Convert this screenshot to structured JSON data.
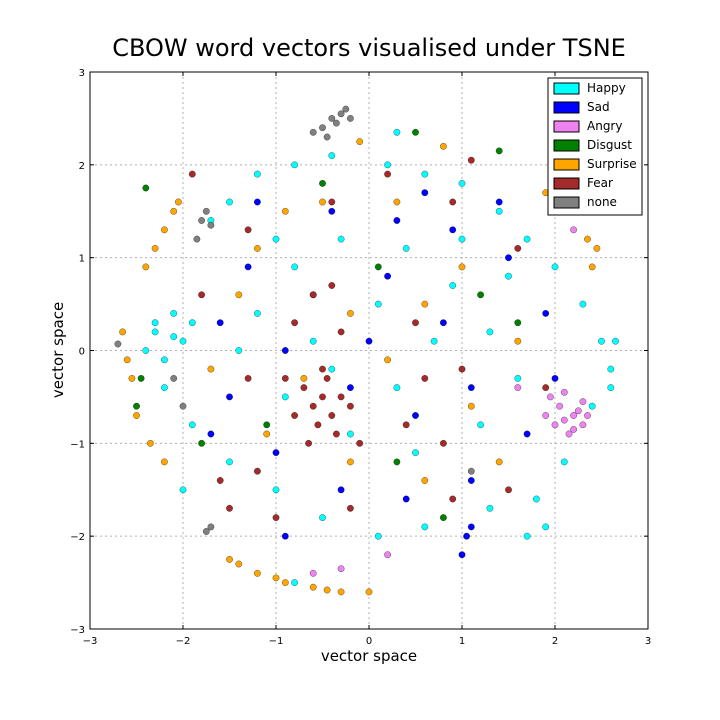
{
  "chart_data": {
    "type": "scatter",
    "title": "CBOW word vectors visualised under TSNE",
    "xlabel": "vector space",
    "ylabel": "vector space",
    "xlim": [
      -3,
      3
    ],
    "ylim": [
      -3,
      3
    ],
    "xticks": [
      "−3",
      "−2",
      "−1",
      "0",
      "1",
      "2",
      "3"
    ],
    "yticks": [
      "−3",
      "−2",
      "−1",
      "0",
      "1",
      "2",
      "3"
    ],
    "grid": true,
    "legend_position": "top-right",
    "series": [
      {
        "name": "Happy",
        "color": "#00ffff",
        "points": [
          [
            -2.3,
            0.2
          ],
          [
            -2.1,
            0.4
          ],
          [
            -2.2,
            -0.1
          ],
          [
            -1.9,
            0.3
          ],
          [
            -2.0,
            0.1
          ],
          [
            -1.7,
            1.4
          ],
          [
            -1.5,
            1.6
          ],
          [
            -1.2,
            1.9
          ],
          [
            -0.8,
            2.0
          ],
          [
            -0.4,
            2.1
          ],
          [
            0.2,
            2.0
          ],
          [
            0.6,
            1.9
          ],
          [
            1.0,
            1.8
          ],
          [
            1.4,
            1.5
          ],
          [
            1.7,
            1.2
          ],
          [
            2.0,
            0.9
          ],
          [
            2.3,
            0.5
          ],
          [
            2.5,
            0.1
          ],
          [
            2.6,
            -0.2
          ],
          [
            2.4,
            -0.6
          ],
          [
            2.1,
            -1.2
          ],
          [
            1.8,
            -1.6
          ],
          [
            1.3,
            -1.7
          ],
          [
            0.6,
            -1.9
          ],
          [
            0.1,
            -2.0
          ],
          [
            -0.5,
            -1.8
          ],
          [
            -1.0,
            -1.5
          ],
          [
            -1.5,
            -1.2
          ],
          [
            -1.9,
            -0.8
          ],
          [
            -2.2,
            -0.4
          ],
          [
            -1.2,
            0.4
          ],
          [
            -0.8,
            0.9
          ],
          [
            -0.3,
            1.2
          ],
          [
            0.4,
            1.1
          ],
          [
            0.9,
            0.7
          ],
          [
            1.3,
            0.2
          ],
          [
            1.6,
            -0.3
          ],
          [
            1.2,
            -0.8
          ],
          [
            0.5,
            -1.1
          ],
          [
            -0.2,
            -0.9
          ],
          [
            -0.9,
            -0.5
          ],
          [
            -1.4,
            0.0
          ],
          [
            -0.6,
            0.1
          ],
          [
            0.1,
            0.5
          ],
          [
            0.7,
            0.1
          ],
          [
            0.3,
            -0.4
          ],
          [
            -0.4,
            -0.2
          ],
          [
            1.0,
            1.2
          ],
          [
            1.5,
            0.8
          ],
          [
            -1.0,
            1.2
          ],
          [
            -2.4,
            0.0
          ],
          [
            -2.3,
            0.3
          ],
          [
            -2.1,
            0.15
          ],
          [
            2.65,
            0.1
          ],
          [
            2.6,
            -0.4
          ],
          [
            1.9,
            -1.9
          ],
          [
            -0.8,
            -2.5
          ],
          [
            -2.0,
            -1.5
          ],
          [
            0.3,
            2.35
          ],
          [
            1.7,
            -2.0
          ]
        ]
      },
      {
        "name": "Sad",
        "color": "#0000ff",
        "points": [
          [
            -1.2,
            1.6
          ],
          [
            -0.4,
            1.5
          ],
          [
            0.3,
            1.4
          ],
          [
            0.9,
            1.3
          ],
          [
            1.5,
            1.0
          ],
          [
            1.9,
            0.4
          ],
          [
            2.0,
            -0.3
          ],
          [
            1.7,
            -0.9
          ],
          [
            1.1,
            -1.4
          ],
          [
            0.4,
            -1.6
          ],
          [
            -0.3,
            -1.5
          ],
          [
            -1.0,
            -1.1
          ],
          [
            -1.5,
            -0.5
          ],
          [
            -1.6,
            0.3
          ],
          [
            -1.3,
            0.9
          ],
          [
            -0.6,
            0.6
          ],
          [
            0.2,
            0.8
          ],
          [
            0.8,
            0.3
          ],
          [
            1.1,
            -0.4
          ],
          [
            0.5,
            -0.7
          ],
          [
            -0.2,
            -0.4
          ],
          [
            -0.9,
            0.0
          ],
          [
            0.0,
            0.1
          ],
          [
            1.05,
            -2.0
          ],
          [
            1.0,
            -2.2
          ],
          [
            1.1,
            -1.9
          ],
          [
            -0.9,
            -2.0
          ],
          [
            0.6,
            1.7
          ],
          [
            -1.7,
            -0.9
          ],
          [
            1.4,
            1.6
          ]
        ]
      },
      {
        "name": "Angry",
        "color": "#ee82ee",
        "points": [
          [
            2.2,
            -0.7
          ],
          [
            2.3,
            -0.8
          ],
          [
            2.1,
            -0.75
          ],
          [
            2.25,
            -0.65
          ],
          [
            2.0,
            -0.8
          ],
          [
            2.15,
            -0.9
          ],
          [
            2.3,
            -0.55
          ],
          [
            1.9,
            -0.7
          ],
          [
            2.05,
            -0.6
          ],
          [
            2.2,
            -0.85
          ],
          [
            1.95,
            -0.5
          ],
          [
            2.1,
            -0.45
          ],
          [
            2.2,
            1.3
          ],
          [
            -0.3,
            -2.35
          ],
          [
            0.2,
            -2.2
          ],
          [
            -0.6,
            -2.4
          ],
          [
            1.6,
            -0.4
          ],
          [
            2.35,
            -0.7
          ]
        ]
      },
      {
        "name": "Disgust",
        "color": "#008000",
        "points": [
          [
            -2.4,
            1.75
          ],
          [
            -2.5,
            -0.6
          ],
          [
            -2.45,
            -0.3
          ],
          [
            -1.8,
            -1.0
          ],
          [
            0.3,
            -1.2
          ],
          [
            1.2,
            0.6
          ],
          [
            0.5,
            2.35
          ],
          [
            1.4,
            2.15
          ],
          [
            -0.5,
            1.8
          ],
          [
            0.8,
            -1.8
          ],
          [
            1.6,
            0.3
          ],
          [
            -1.1,
            -0.8
          ],
          [
            0.1,
            0.9
          ]
        ]
      },
      {
        "name": "Surprise",
        "color": "#ffa500",
        "points": [
          [
            -2.55,
            -0.3
          ],
          [
            -2.6,
            -0.1
          ],
          [
            -2.65,
            0.2
          ],
          [
            -2.5,
            -0.7
          ],
          [
            -2.35,
            -1.0
          ],
          [
            -2.2,
            -1.2
          ],
          [
            -2.4,
            0.9
          ],
          [
            -2.3,
            1.1
          ],
          [
            -2.2,
            1.3
          ],
          [
            -2.1,
            1.5
          ],
          [
            -2.05,
            1.6
          ],
          [
            -1.5,
            -2.25
          ],
          [
            -1.2,
            -2.4
          ],
          [
            -0.9,
            -2.5
          ],
          [
            -0.6,
            -2.55
          ],
          [
            -0.3,
            -2.6
          ],
          [
            0.0,
            -2.6
          ],
          [
            -1.4,
            -2.3
          ],
          [
            -1.0,
            -2.45
          ],
          [
            -0.45,
            -2.58
          ],
          [
            2.4,
            0.9
          ],
          [
            2.45,
            1.1
          ],
          [
            2.35,
            1.2
          ],
          [
            -1.2,
            1.1
          ],
          [
            -0.5,
            1.6
          ],
          [
            0.3,
            1.6
          ],
          [
            1.0,
            0.9
          ],
          [
            1.6,
            0.1
          ],
          [
            1.4,
            -1.2
          ],
          [
            0.6,
            -1.4
          ],
          [
            -0.2,
            -1.2
          ],
          [
            -1.1,
            -0.9
          ],
          [
            -1.7,
            -0.2
          ],
          [
            -1.4,
            0.6
          ],
          [
            -0.7,
            -0.3
          ],
          [
            0.2,
            -0.1
          ],
          [
            0.6,
            0.5
          ],
          [
            -0.2,
            0.4
          ],
          [
            1.1,
            -0.6
          ],
          [
            -0.9,
            1.5
          ],
          [
            1.9,
            1.7
          ],
          [
            0.8,
            2.2
          ],
          [
            -0.1,
            2.25
          ]
        ]
      },
      {
        "name": "Fear",
        "color": "#a52a2a",
        "points": [
          [
            -0.6,
            -0.6
          ],
          [
            -0.5,
            -0.5
          ],
          [
            -0.4,
            -0.7
          ],
          [
            -0.7,
            -0.4
          ],
          [
            -0.55,
            -0.8
          ],
          [
            -0.3,
            -0.5
          ],
          [
            -0.45,
            -0.3
          ],
          [
            -0.8,
            -0.7
          ],
          [
            -0.35,
            -0.9
          ],
          [
            -0.65,
            -1.0
          ],
          [
            -0.2,
            -0.6
          ],
          [
            -0.9,
            -0.3
          ],
          [
            -0.5,
            -0.2
          ],
          [
            -0.6,
            0.6
          ],
          [
            -0.4,
            0.7
          ],
          [
            -0.8,
            0.3
          ],
          [
            -0.3,
            0.2
          ],
          [
            0.4,
            -0.8
          ],
          [
            0.8,
            -1.0
          ],
          [
            1.0,
            -0.2
          ],
          [
            0.5,
            0.3
          ],
          [
            -1.2,
            -1.3
          ],
          [
            -1.6,
            -1.4
          ],
          [
            -1.9,
            1.9
          ],
          [
            -1.3,
            1.3
          ],
          [
            0.9,
            1.6
          ],
          [
            1.6,
            1.1
          ],
          [
            1.9,
            -0.4
          ],
          [
            1.5,
            -1.5
          ],
          [
            0.9,
            -1.6
          ],
          [
            -0.2,
            -1.7
          ],
          [
            -1.0,
            -1.8
          ],
          [
            -1.5,
            -1.7
          ],
          [
            -1.8,
            0.6
          ],
          [
            -1.3,
            -0.3
          ],
          [
            0.2,
            1.9
          ],
          [
            1.1,
            2.05
          ],
          [
            -0.4,
            1.6
          ],
          [
            0.6,
            -0.3
          ],
          [
            -0.1,
            -1.0
          ]
        ]
      },
      {
        "name": "none",
        "color": "#808080",
        "points": [
          [
            -0.4,
            2.5
          ],
          [
            -0.3,
            2.55
          ],
          [
            -0.25,
            2.6
          ],
          [
            -0.35,
            2.45
          ],
          [
            -0.5,
            2.4
          ],
          [
            -0.6,
            2.35
          ],
          [
            -0.2,
            2.5
          ],
          [
            -0.45,
            2.3
          ],
          [
            -1.8,
            1.4
          ],
          [
            -1.85,
            1.2
          ],
          [
            -1.75,
            1.5
          ],
          [
            -1.7,
            1.35
          ],
          [
            -2.1,
            -0.3
          ],
          [
            -2.0,
            -0.6
          ],
          [
            -2.7,
            0.07
          ],
          [
            -1.7,
            -1.9
          ],
          [
            -1.75,
            -1.95
          ],
          [
            1.1,
            -1.3
          ]
        ]
      }
    ]
  }
}
